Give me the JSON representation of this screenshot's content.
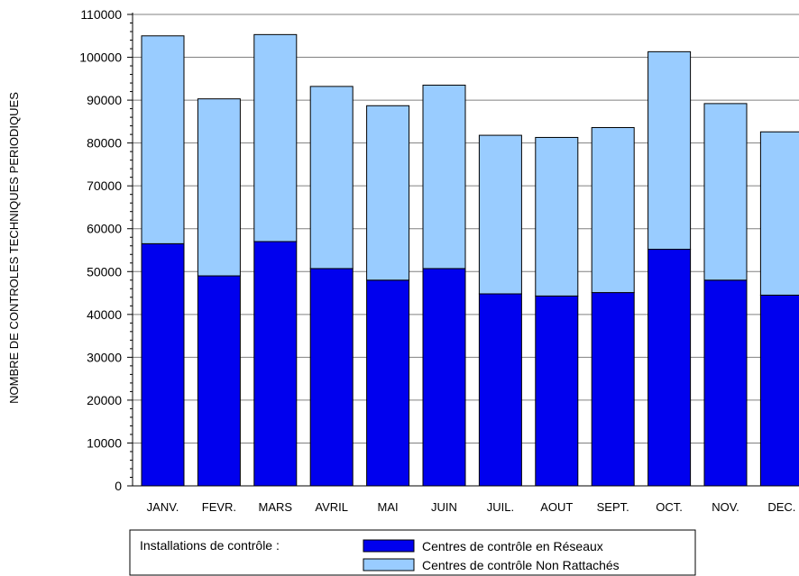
{
  "chart_data": {
    "type": "bar",
    "stacked": true,
    "categories": [
      "JANV.",
      "FEVR.",
      "MARS",
      "AVRIL",
      "MAI",
      "JUIN",
      "JUIL.",
      "AOUT",
      "SEPT.",
      "OCT.",
      "NOV.",
      "DEC."
    ],
    "series": [
      {
        "name": "Centres de contrôle en Réseaux",
        "color": "#0000ee",
        "values": [
          56500,
          49000,
          57000,
          50700,
          48000,
          50700,
          44800,
          44300,
          45100,
          55200,
          48000,
          44500
        ]
      },
      {
        "name": "Centres de contrôle Non Rattachés",
        "color": "#99ccff",
        "values": [
          48500,
          41300,
          48300,
          42500,
          40700,
          42800,
          37000,
          37000,
          38500,
          46100,
          41200,
          38100
        ]
      }
    ],
    "ylabel": "NOMBRE DE CONTROLES TECHNIQUES PERIODIQUES",
    "xlabel": "",
    "ylim": [
      0,
      110000
    ],
    "yticks": [
      0,
      10000,
      20000,
      30000,
      40000,
      50000,
      60000,
      70000,
      80000,
      90000,
      100000,
      110000
    ],
    "grid": true,
    "legend": {
      "title": "Installations de contrôle :",
      "position": "bottom"
    }
  }
}
